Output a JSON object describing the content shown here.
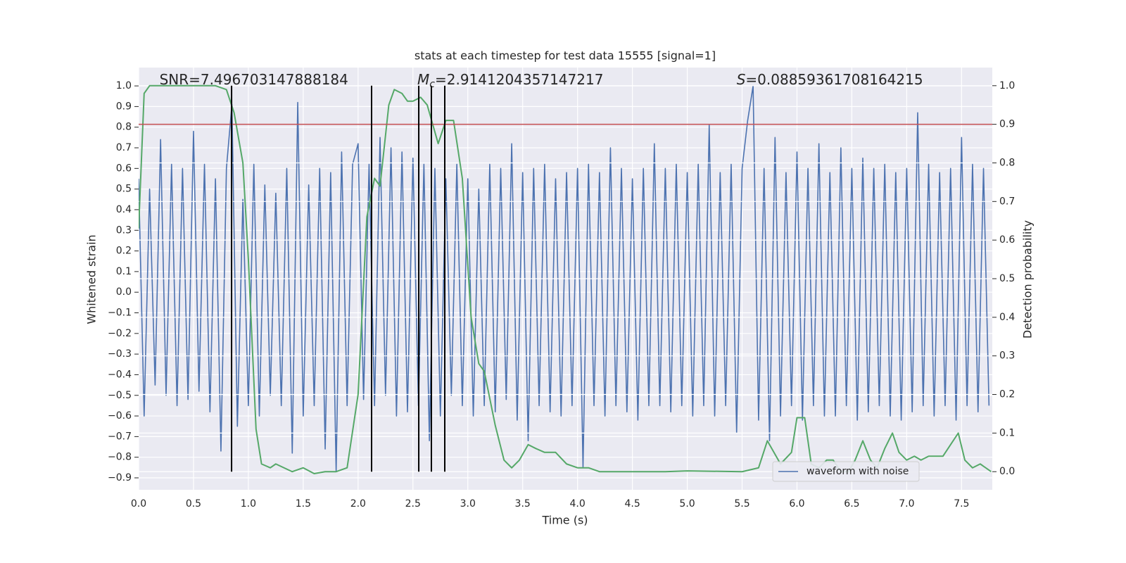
{
  "chart_data": {
    "type": "line",
    "title": "stats at each timestep for test data 15555 [signal=1]",
    "xlabel": "Time (s)",
    "ylabel": "Whitened strain",
    "y2label": "Detection probability",
    "xlim": [
      0,
      7.78
    ],
    "ylim": [
      -0.958,
      1.089
    ],
    "y2lim": [
      -0.047,
      1.047
    ],
    "xticks": [
      {
        "value": 0,
        "label": "0.0"
      },
      {
        "value": 0.5,
        "label": "0.5"
      },
      {
        "value": 1,
        "label": "1.0"
      },
      {
        "value": 1.5,
        "label": "1.5"
      },
      {
        "value": 2,
        "label": "2.0"
      },
      {
        "value": 2.5,
        "label": "2.5"
      },
      {
        "value": 3,
        "label": "3.0"
      },
      {
        "value": 3.5,
        "label": "3.5"
      },
      {
        "value": 4,
        "label": "4.0"
      },
      {
        "value": 4.5,
        "label": "4.5"
      },
      {
        "value": 5,
        "label": "5.0"
      },
      {
        "value": 5.5,
        "label": "5.5"
      },
      {
        "value": 6,
        "label": "6.0"
      },
      {
        "value": 6.5,
        "label": "6.5"
      },
      {
        "value": 7,
        "label": "7.0"
      },
      {
        "value": 7.5,
        "label": "7.5"
      }
    ],
    "yticks": [
      {
        "value": -0.9,
        "label": "−0.9"
      },
      {
        "value": -0.8,
        "label": "−0.8"
      },
      {
        "value": -0.7,
        "label": "−0.7"
      },
      {
        "value": -0.6,
        "label": "−0.6"
      },
      {
        "value": -0.5,
        "label": "−0.5"
      },
      {
        "value": -0.4,
        "label": "−0.4"
      },
      {
        "value": -0.3,
        "label": "−0.3"
      },
      {
        "value": -0.2,
        "label": "−0.2"
      },
      {
        "value": -0.1,
        "label": "−0.1"
      },
      {
        "value": 0,
        "label": "0.0"
      },
      {
        "value": 0.1,
        "label": "0.1"
      },
      {
        "value": 0.2,
        "label": "0.2"
      },
      {
        "value": 0.3,
        "label": "0.3"
      },
      {
        "value": 0.4,
        "label": "0.4"
      },
      {
        "value": 0.5,
        "label": "0.5"
      },
      {
        "value": 0.6,
        "label": "0.6"
      },
      {
        "value": 0.7,
        "label": "0.7"
      },
      {
        "value": 0.8,
        "label": "0.8"
      },
      {
        "value": 0.9,
        "label": "0.9"
      },
      {
        "value": 1,
        "label": "1.0"
      }
    ],
    "y2ticks": [
      {
        "value": 0,
        "label": "0.0"
      },
      {
        "value": 0.1,
        "label": "0.1"
      },
      {
        "value": 0.2,
        "label": "0.2"
      },
      {
        "value": 0.3,
        "label": "0.3"
      },
      {
        "value": 0.4,
        "label": "0.4"
      },
      {
        "value": 0.5,
        "label": "0.5"
      },
      {
        "value": 0.6,
        "label": "0.6"
      },
      {
        "value": 0.7,
        "label": "0.7"
      },
      {
        "value": 0.8,
        "label": "0.8"
      },
      {
        "value": 0.9,
        "label": "0.9"
      },
      {
        "value": 1,
        "label": "1.0"
      }
    ],
    "grid": true,
    "legend": "lower right",
    "series": [
      {
        "name": "waveform with noise",
        "color": "#4c72b0",
        "x": [
          0,
          0.05,
          0.1,
          0.15,
          0.2,
          0.25,
          0.3,
          0.35,
          0.4,
          0.45,
          0.5,
          0.55,
          0.6,
          0.65,
          0.7,
          0.75,
          0.8,
          0.85,
          0.9,
          0.95,
          1,
          1.05,
          1.1,
          1.15,
          1.2,
          1.25,
          1.3,
          1.35,
          1.4,
          1.45,
          1.5,
          1.55,
          1.6,
          1.65,
          1.7,
          1.75,
          1.8,
          1.85,
          1.9,
          1.95,
          2,
          2.05,
          2.1,
          2.15,
          2.2,
          2.25,
          2.3,
          2.35,
          2.4,
          2.45,
          2.5,
          2.55,
          2.6,
          2.65,
          2.7,
          2.75,
          2.8,
          2.85,
          2.9,
          2.95,
          3,
          3.05,
          3.1,
          3.15,
          3.2,
          3.25,
          3.3,
          3.35,
          3.4,
          3.45,
          3.5,
          3.55,
          3.6,
          3.65,
          3.7,
          3.75,
          3.8,
          3.85,
          3.9,
          3.95,
          4,
          4.05,
          4.1,
          4.15,
          4.2,
          4.25,
          4.3,
          4.35,
          4.4,
          4.45,
          4.5,
          4.55,
          4.6,
          4.65,
          4.7,
          4.75,
          4.8,
          4.85,
          4.9,
          4.95,
          5,
          5.05,
          5.1,
          5.15,
          5.2,
          5.25,
          5.3,
          5.35,
          5.4,
          5.45,
          5.5,
          5.55,
          5.6,
          5.65,
          5.7,
          5.75,
          5.8,
          5.85,
          5.9,
          5.95,
          6,
          6.05,
          6.1,
          6.15,
          6.2,
          6.25,
          6.3,
          6.35,
          6.4,
          6.45,
          6.5,
          6.55,
          6.6,
          6.65,
          6.7,
          6.75,
          6.8,
          6.85,
          6.9,
          6.95,
          7,
          7.05,
          7.1,
          7.15,
          7.2,
          7.25,
          7.3,
          7.35,
          7.4,
          7.45,
          7.5,
          7.55,
          7.6,
          7.65,
          7.7,
          7.75
        ],
        "values": [
          0.55,
          -0.6,
          0.5,
          -0.45,
          0.74,
          -0.5,
          0.62,
          -0.55,
          0.6,
          -0.52,
          0.78,
          -0.48,
          0.62,
          -0.58,
          0.55,
          -0.77,
          0.6,
          0.91,
          -0.65,
          0.45,
          -0.55,
          0.62,
          -0.6,
          0.52,
          -0.5,
          0.48,
          -0.55,
          0.6,
          -0.78,
          0.92,
          -0.6,
          0.52,
          -0.55,
          0.6,
          -0.76,
          0.58,
          -0.87,
          0.68,
          -0.55,
          0.62,
          0.72,
          -0.52,
          0.62,
          -0.55,
          0.75,
          -0.5,
          0.7,
          -0.6,
          0.68,
          -0.58,
          0.65,
          -0.55,
          0.62,
          -0.72,
          0.6,
          -0.6,
          0.55,
          -0.5,
          0.62,
          -0.55,
          0.55,
          -0.6,
          0.5,
          -0.55,
          0.62,
          -0.58,
          0.6,
          -0.52,
          0.72,
          -0.62,
          0.58,
          -0.72,
          0.6,
          -0.55,
          0.62,
          -0.58,
          0.55,
          -0.6,
          0.58,
          -0.55,
          0.6,
          -0.85,
          0.62,
          -0.55,
          0.58,
          -0.6,
          0.7,
          -0.55,
          0.6,
          -0.58,
          0.55,
          -0.62,
          0.6,
          -0.55,
          0.72,
          -0.55,
          0.6,
          -0.58,
          0.62,
          -0.55,
          0.58,
          -0.6,
          0.62,
          -0.55,
          0.81,
          -0.6,
          0.58,
          -0.55,
          0.62,
          -0.68,
          0.6,
          0.83,
          1.0,
          -0.62,
          0.6,
          -0.72,
          0.75,
          -0.6,
          0.58,
          -0.55,
          0.68,
          -0.62,
          0.6,
          -0.55,
          0.72,
          -0.6,
          0.58,
          -0.6,
          0.7,
          -0.55,
          0.6,
          -0.62,
          0.65,
          -0.58,
          0.6,
          -0.55,
          0.62,
          -0.6,
          0.58,
          -0.62,
          0.6,
          -0.58,
          0.87,
          -0.55,
          0.62,
          -0.6,
          0.58,
          -0.55,
          0.6,
          -0.62,
          0.75,
          -0.55,
          0.62,
          -0.58,
          0.6,
          -0.55
        ]
      },
      {
        "color": "#55a868",
        "axis": "y2",
        "x": [
          0,
          0.05,
          0.1,
          0.7,
          0.8,
          0.87,
          0.95,
          1.0,
          1.07,
          1.12,
          1.2,
          1.25,
          1.4,
          1.5,
          1.6,
          1.7,
          1.8,
          1.9,
          2.0,
          2.08,
          2.15,
          2.2,
          2.28,
          2.33,
          2.4,
          2.45,
          2.5,
          2.57,
          2.63,
          2.68,
          2.73,
          2.8,
          2.87,
          2.95,
          3.03,
          3.1,
          3.15,
          3.25,
          3.33,
          3.4,
          3.47,
          3.55,
          3.62,
          3.7,
          3.8,
          3.9,
          4.0,
          4.1,
          4.2,
          4.4,
          4.8,
          5.0,
          5.5,
          5.65,
          5.73,
          5.85,
          5.95,
          6.0,
          6.07,
          6.13,
          6.2,
          6.27,
          6.33,
          6.4,
          6.47,
          6.53,
          6.6,
          6.67,
          6.73,
          6.8,
          6.87,
          6.93,
          7.0,
          7.07,
          7.13,
          7.2,
          7.27,
          7.33,
          7.4,
          7.47,
          7.53,
          7.6,
          7.67,
          7.77
        ],
        "values": [
          0.63,
          0.98,
          1.0,
          1.0,
          0.99,
          0.93,
          0.8,
          0.55,
          0.11,
          0.02,
          0.01,
          0.02,
          0.0,
          0.01,
          -0.005,
          0.0,
          0.0,
          0.01,
          0.2,
          0.66,
          0.76,
          0.74,
          0.95,
          0.99,
          0.98,
          0.96,
          0.96,
          0.97,
          0.95,
          0.9,
          0.85,
          0.91,
          0.91,
          0.76,
          0.4,
          0.28,
          0.26,
          0.12,
          0.03,
          0.01,
          0.03,
          0.07,
          0.06,
          0.05,
          0.05,
          0.02,
          0.01,
          0.01,
          0.0,
          0.0,
          0.0,
          0.002,
          0.0,
          0.01,
          0.08,
          0.02,
          0.05,
          0.14,
          0.14,
          0.02,
          0.01,
          0.03,
          0.03,
          0.0,
          0.0,
          0.03,
          0.08,
          0.03,
          0.01,
          0.06,
          0.1,
          0.05,
          0.03,
          0.04,
          0.03,
          0.04,
          0.04,
          0.04,
          0.07,
          0.1,
          0.03,
          0.01,
          0.02,
          0.0
        ]
      }
    ],
    "hlines": [
      {
        "value": 0.9,
        "axis": "y2",
        "color": "#c44e52"
      }
    ],
    "vlines": {
      "x": [
        0.847,
        2.123,
        2.553,
        2.668,
        2.79
      ],
      "ymin": 0,
      "ymax": 1,
      "axis": "y2",
      "color": "#000000"
    },
    "annotations": [
      {
        "text": "SNR=7.496703147888184",
        "x": 0.19,
        "y": 1.027
      },
      {
        "symbol": "M",
        "subscript": "c",
        "text": "=2.9141204357147217",
        "x": 2.54,
        "y": 1.027
      },
      {
        "symbol": "S",
        "text": "=0.08859361708164215",
        "x": 5.45,
        "y": 1.027
      }
    ]
  }
}
